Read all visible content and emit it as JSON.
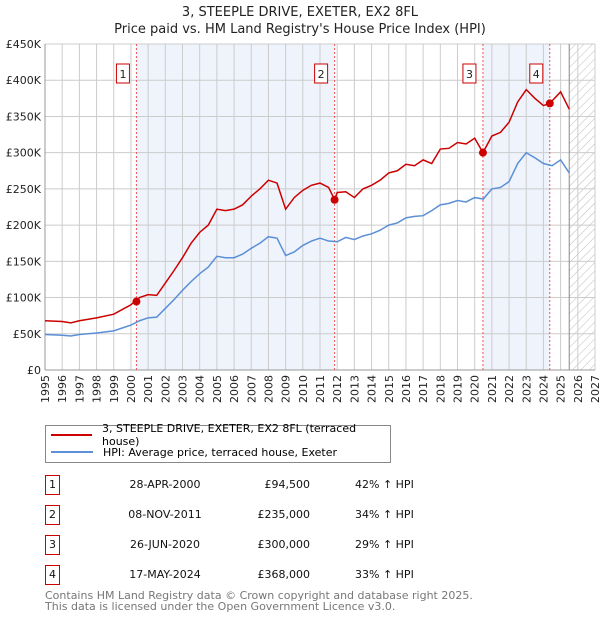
{
  "chart_data": {
    "type": "line",
    "title": "3, STEEPLE DRIVE, EXETER, EX2 8FL",
    "subtitle": "Price paid vs. HM Land Registry's House Price Index (HPI)",
    "xlim": [
      1995,
      2027
    ],
    "ylim": [
      0,
      450000
    ],
    "x_ticks": [
      "1995",
      "1996",
      "1997",
      "1998",
      "1999",
      "2000",
      "2001",
      "2002",
      "2003",
      "2004",
      "2005",
      "2006",
      "2007",
      "2008",
      "2009",
      "2010",
      "2011",
      "2012",
      "2013",
      "2014",
      "2015",
      "2016",
      "2017",
      "2018",
      "2019",
      "2020",
      "2021",
      "2022",
      "2023",
      "2024",
      "2025",
      "2026",
      "2027"
    ],
    "y_ticks": [
      {
        "v": 0,
        "l": "£0"
      },
      {
        "v": 50000,
        "l": "£50K"
      },
      {
        "v": 100000,
        "l": "£100K"
      },
      {
        "v": 150000,
        "l": "£150K"
      },
      {
        "v": 200000,
        "l": "£200K"
      },
      {
        "v": 250000,
        "l": "£250K"
      },
      {
        "v": 300000,
        "l": "£300K"
      },
      {
        "v": 350000,
        "l": "£350K"
      },
      {
        "v": 400000,
        "l": "£400K"
      },
      {
        "v": 450000,
        "l": "£450K"
      }
    ],
    "shaded_ranges": [
      [
        2000.32,
        2011.85
      ],
      [
        2020.48,
        2024.37
      ]
    ],
    "forecast_from": 2025.5,
    "series": [
      {
        "name": "3, STEEPLE DRIVE, EXETER, EX2 8FL (terraced house)",
        "color": "#cc0000",
        "x": [
          1995,
          1996,
          1996.5,
          1997,
          1998,
          1999,
          2000,
          2000.5,
          2001,
          2001.5,
          2002,
          2002.5,
          2003,
          2003.5,
          2004,
          2004.5,
          2005,
          2005.5,
          2006,
          2006.5,
          2007,
          2007.5,
          2008,
          2008.5,
          2009,
          2009.5,
          2010,
          2010.5,
          2011,
          2011.5,
          2011.85,
          2012,
          2012.5,
          2013,
          2013.5,
          2014,
          2014.5,
          2015,
          2015.5,
          2016,
          2016.5,
          2017,
          2017.5,
          2018,
          2018.5,
          2019,
          2019.5,
          2020,
          2020.48,
          2021,
          2021.5,
          2022,
          2022.5,
          2023,
          2023.5,
          2024,
          2024.37,
          2025,
          2025.5
        ],
        "y": [
          68000,
          67000,
          65000,
          68000,
          72000,
          77000,
          90000,
          100000,
          104000,
          103000,
          120000,
          137000,
          155000,
          175000,
          190000,
          200000,
          222000,
          220000,
          222000,
          228000,
          240000,
          250000,
          262000,
          258000,
          222000,
          238000,
          248000,
          255000,
          258000,
          252000,
          235000,
          245000,
          246000,
          238000,
          250000,
          255000,
          262000,
          272000,
          275000,
          284000,
          282000,
          290000,
          285000,
          305000,
          306000,
          314000,
          312000,
          320000,
          300000,
          323000,
          328000,
          342000,
          370000,
          387000,
          375000,
          365000,
          368000,
          384000,
          360000
        ]
      },
      {
        "name": "HPI: Average price, terraced house, Exeter",
        "color": "#5b8fd6",
        "x": [
          1995,
          1996,
          1996.5,
          1997,
          1998,
          1999,
          2000,
          2000.5,
          2001,
          2001.5,
          2002,
          2002.5,
          2003,
          2003.5,
          2004,
          2004.5,
          2005,
          2005.5,
          2006,
          2006.5,
          2007,
          2007.5,
          2008,
          2008.5,
          2009,
          2009.5,
          2010,
          2010.5,
          2011,
          2011.5,
          2012,
          2012.5,
          2013,
          2013.5,
          2014,
          2014.5,
          2015,
          2015.5,
          2016,
          2016.5,
          2017,
          2017.5,
          2018,
          2018.5,
          2019,
          2019.5,
          2020,
          2020.5,
          2021,
          2021.5,
          2022,
          2022.5,
          2023,
          2023.5,
          2024,
          2024.5,
          2025,
          2025.5
        ],
        "y": [
          49000,
          48000,
          47000,
          49000,
          51000,
          54000,
          62000,
          68000,
          72000,
          73000,
          85000,
          97000,
          110000,
          122000,
          133000,
          142000,
          157000,
          155000,
          155000,
          160000,
          168000,
          175000,
          184000,
          182000,
          158000,
          163000,
          172000,
          178000,
          182000,
          178000,
          177000,
          183000,
          180000,
          185000,
          188000,
          193000,
          200000,
          203000,
          210000,
          212000,
          213000,
          220000,
          228000,
          230000,
          234000,
          232000,
          238000,
          236000,
          250000,
          252000,
          260000,
          285000,
          300000,
          293000,
          285000,
          282000,
          290000,
          272000
        ]
      }
    ],
    "sales": [
      {
        "n": "1",
        "x": 2000.32,
        "y": 94500,
        "date": "28-APR-2000",
        "price": "£94,500",
        "hpi": "42% ↑ HPI"
      },
      {
        "n": "2",
        "x": 2011.85,
        "y": 235000,
        "date": "08-NOV-2011",
        "price": "£235,000",
        "hpi": "34% ↑ HPI"
      },
      {
        "n": "3",
        "x": 2020.48,
        "y": 300000,
        "date": "26-JUN-2020",
        "price": "£300,000",
        "hpi": "29% ↑ HPI"
      },
      {
        "n": "4",
        "x": 2024.37,
        "y": 368000,
        "date": "17-MAY-2024",
        "price": "£368,000",
        "hpi": "33% ↑ HPI"
      }
    ]
  },
  "footer": {
    "line1": "Contains HM Land Registry data © Crown copyright and database right 2025.",
    "line2": "This data is licensed under the Open Government Licence v3.0."
  }
}
